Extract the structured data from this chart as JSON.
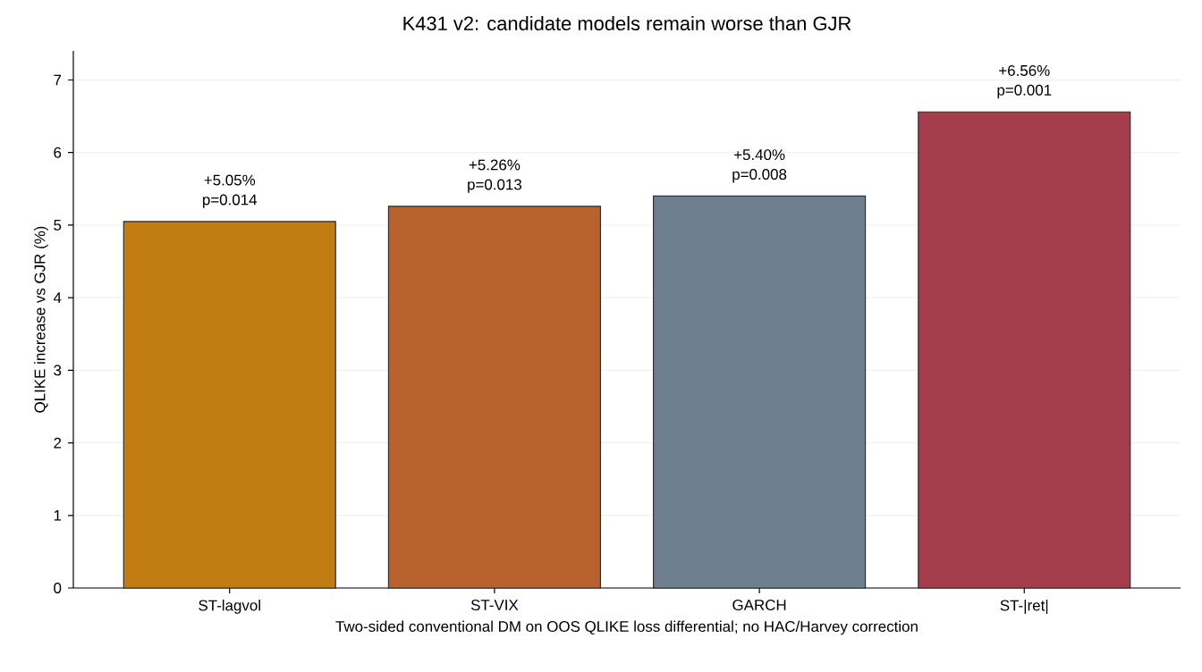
{
  "chart_data": {
    "type": "bar",
    "title": "K431 v2: candidate models remain worse than GJR",
    "xlabel": "Two-sided conventional DM on OOS QLIKE loss differential; no HAC/Harvey correction",
    "ylabel": "QLIKE increase vs GJR (%)",
    "categories": [
      "ST-lagvol",
      "ST-VIX",
      "GARCH",
      "ST-|ret|"
    ],
    "values": [
      5.05,
      5.26,
      5.4,
      6.56
    ],
    "colors": [
      "#c17d11",
      "#b86230",
      "#6e7f8f",
      "#a33d4c"
    ],
    "value_labels": [
      "+5.05%",
      "+5.26%",
      "+5.40%",
      "+6.56%"
    ],
    "annotations": [
      {
        "text": "p=0.014",
        "x": "ST-lagvol",
        "y": 5.05
      },
      {
        "text": "p=0.013",
        "x": "ST-VIX",
        "y": 5.26
      },
      {
        "text": "p=0.008",
        "x": "GARCH",
        "y": 5.4
      },
      {
        "text": "p=0.001",
        "x": "ST-|ret|",
        "y": 6.56
      }
    ],
    "ylim": [
      0,
      7.4
    ],
    "yticks": [
      0,
      1,
      2,
      3,
      4,
      5,
      6,
      7
    ],
    "grid": "y"
  }
}
